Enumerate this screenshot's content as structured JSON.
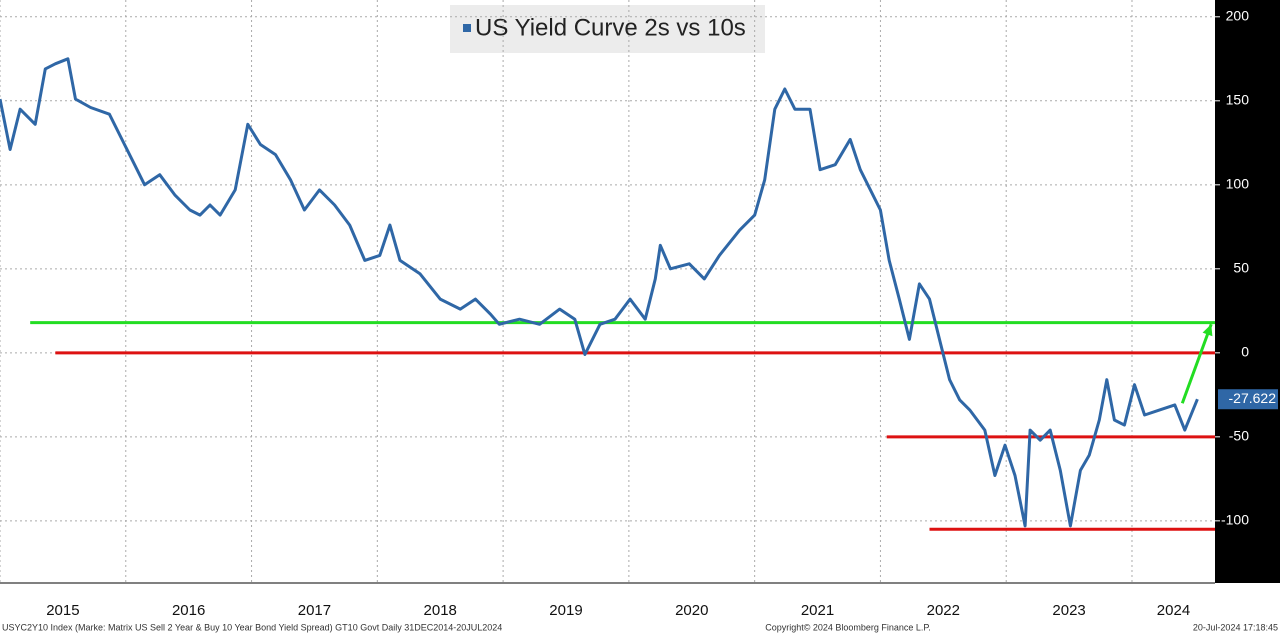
{
  "chart_data": {
    "type": "line",
    "series": [
      {
        "name": "US Yield Curve 2s vs 10s",
        "color": "#2f67a6",
        "x": [
          2015.0,
          2015.08,
          2015.16,
          2015.28,
          2015.36,
          2015.44,
          2015.54,
          2015.6,
          2015.72,
          2015.87,
          2015.99,
          2016.07,
          2016.15,
          2016.27,
          2016.39,
          2016.51,
          2016.59,
          2016.67,
          2016.75,
          2016.87,
          2016.97,
          2017.07,
          2017.19,
          2017.31,
          2017.42,
          2017.54,
          2017.66,
          2017.78,
          2017.9,
          2018.02,
          2018.1,
          2018.18,
          2018.34,
          2018.5,
          2018.66,
          2018.78,
          2018.9,
          2018.97,
          2019.13,
          2019.29,
          2019.45,
          2019.57,
          2019.65,
          2019.77,
          2019.89,
          2020.01,
          2020.13,
          2020.21,
          2020.25,
          2020.33,
          2020.48,
          2020.6,
          2020.72,
          2020.88,
          2021.0,
          2021.08,
          2021.16,
          2021.24,
          2021.32,
          2021.44,
          2021.52,
          2021.64,
          2021.76,
          2021.84,
          2021.92,
          2022.0,
          2022.07,
          2022.15,
          2022.23,
          2022.31,
          2022.39,
          2022.47,
          2022.55,
          2022.63,
          2022.71,
          2022.83,
          2022.91,
          2022.99,
          2023.07,
          2023.15,
          2023.19,
          2023.27,
          2023.35,
          2023.43,
          2023.51,
          2023.59,
          2023.66,
          2023.74,
          2023.8,
          2023.86,
          2023.94,
          2024.02,
          2024.1,
          2024.22,
          2024.34,
          2024.42,
          2024.52
        ],
        "values": [
          151,
          121,
          145,
          136,
          169,
          172,
          175,
          151,
          146,
          142,
          124,
          112,
          100,
          106,
          94,
          85,
          82,
          88,
          82,
          97,
          136,
          124,
          118,
          103,
          85,
          97,
          88,
          76,
          55,
          58,
          76,
          55,
          47,
          32,
          26,
          32,
          23,
          17,
          20,
          17,
          26,
          20,
          -1,
          17,
          20,
          32,
          20,
          44,
          64,
          50,
          53,
          44,
          58,
          73,
          82,
          103,
          145,
          157,
          145,
          145,
          109,
          112,
          127,
          109,
          97,
          85,
          55,
          32,
          8,
          41,
          32,
          8,
          -16,
          -28,
          -34,
          -46,
          -73,
          -55,
          -73,
          -103,
          -46,
          -52,
          -46,
          -70,
          -103,
          -70,
          -61,
          -40,
          -16,
          -40,
          -43,
          -19,
          -37,
          -34,
          -31,
          -46,
          -27.622
        ]
      }
    ],
    "xlim": [
      2015,
      2024.66
    ],
    "xticks": [
      2015,
      2016,
      2017,
      2018,
      2019,
      2020,
      2021,
      2022,
      2023,
      2024
    ],
    "ylim": [
      -137,
      210
    ],
    "yticks": [
      -100,
      -50,
      0,
      50,
      100,
      150,
      200
    ],
    "grid": true,
    "hlines": [
      {
        "value": 18,
        "color": "#22dd22",
        "start": 2015.24
      },
      {
        "value": 0,
        "color": "#dd1111",
        "start": 2015.44
      },
      {
        "value": -50,
        "color": "#dd1111",
        "start": 2022.05
      },
      {
        "value": -105,
        "color": "#dd1111",
        "start": 2022.39
      }
    ],
    "arrow": {
      "color": "#22dd22",
      "x": [
        2024.4,
        2024.63
      ],
      "y": [
        -30,
        17
      ]
    },
    "footer": {
      "left": "USYC2Y10 Index (Marke: Matrix US Sell 2 Year & Buy 10 Year Bond Yield Spread) GT10  Govt  Daily 31DEC2014-20JUL2024",
      "center": "Copyright© 2024 Bloomberg Finance L.P.",
      "right": "20-Jul-2024 17:18:45"
    }
  }
}
